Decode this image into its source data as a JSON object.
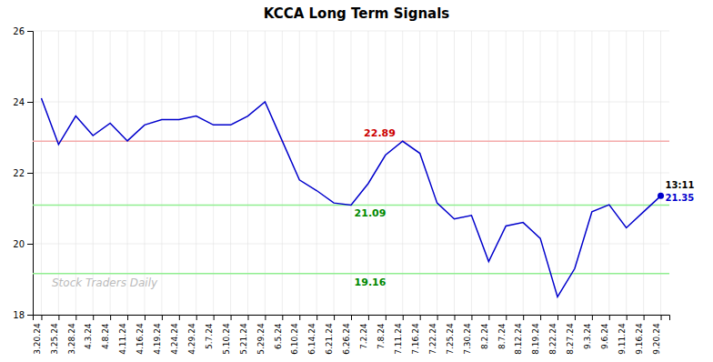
{
  "chart_data": {
    "type": "line",
    "title": "KCCA Long Term Signals",
    "categories": [
      "3.20.24",
      "3.25.24",
      "3.28.24",
      "4.3.24",
      "4.8.24",
      "4.11.24",
      "4.16.24",
      "4.19.24",
      "4.24.24",
      "4.29.24",
      "5.7.24",
      "5.10.24",
      "5.21.24",
      "5.29.24",
      "6.5.24",
      "6.10.24",
      "6.14.24",
      "6.21.24",
      "6.26.24",
      "7.2.24",
      "7.8.24",
      "7.11.24",
      "7.16.24",
      "7.22.24",
      "7.25.24",
      "7.30.24",
      "8.2.24",
      "8.7.24",
      "8.12.24",
      "8.19.24",
      "8.22.24",
      "8.27.24",
      "9.3.24",
      "9.6.24",
      "9.11.24",
      "9.16.24",
      "9.20.24"
    ],
    "values": [
      24.1,
      22.8,
      23.6,
      23.05,
      23.4,
      22.9,
      23.35,
      23.5,
      23.5,
      23.6,
      23.35,
      23.35,
      23.6,
      24.0,
      22.9,
      21.8,
      21.5,
      21.15,
      21.09,
      21.7,
      22.5,
      22.89,
      22.55,
      21.15,
      20.7,
      20.8,
      19.5,
      20.5,
      20.6,
      20.15,
      18.5,
      19.3,
      20.9,
      21.1,
      20.45,
      20.9,
      21.35
    ],
    "color": "#0000CC",
    "marker": "last",
    "ylim": [
      18,
      26
    ],
    "yticks": [
      18,
      20,
      22,
      24,
      26
    ],
    "grid": true,
    "hlines": [
      {
        "value": 22.89,
        "color": "#F4AAAA",
        "label": "22.89",
        "label_color": "#CC0000"
      },
      {
        "value": 21.09,
        "color": "#90EE90",
        "label": "21.09",
        "label_color": "#008800"
      },
      {
        "value": 19.16,
        "color": "#90EE90",
        "label": "19.16",
        "label_color": "#008800"
      }
    ],
    "annotations": [
      {
        "text": "13:11",
        "color": "#000000"
      },
      {
        "text": "21.35",
        "color": "#0000CC"
      }
    ],
    "watermark": "Stock Traders Daily"
  }
}
